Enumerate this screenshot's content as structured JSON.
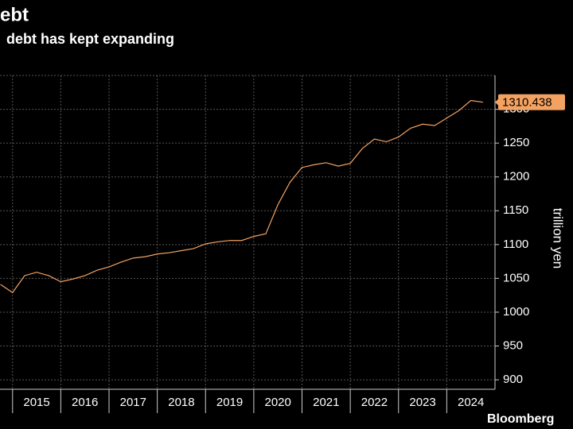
{
  "chart_data": {
    "type": "line",
    "title": "ebt",
    "subtitle": "debt has kept expanding",
    "y_label": "trillion yen",
    "source": "Bloomberg",
    "x": [
      2014.75,
      2015,
      2015.25,
      2015.5,
      2015.75,
      2016,
      2016.25,
      2016.5,
      2016.75,
      2017,
      2017.25,
      2017.5,
      2017.75,
      2018,
      2018.25,
      2018.5,
      2018.75,
      2019,
      2019.25,
      2019.5,
      2019.75,
      2020,
      2020.25,
      2020.5,
      2020.75,
      2021,
      2021.25,
      2021.5,
      2021.75,
      2022,
      2022.25,
      2022.5,
      2022.75,
      2023,
      2023.25,
      2023.5,
      2023.75,
      2024,
      2024.25,
      2024.5,
      2024.75
    ],
    "series": [
      {
        "color": "#f4a261",
        "values": [
          1041,
          1029,
          1054,
          1059,
          1054,
          1045,
          1049,
          1054,
          1062,
          1067,
          1074,
          1080,
          1082,
          1086,
          1088,
          1091,
          1094,
          1101,
          1104,
          1106,
          1106,
          1112,
          1116,
          1159,
          1192,
          1214,
          1218,
          1221,
          1216,
          1220,
          1242,
          1256,
          1252,
          1259,
          1272,
          1278,
          1276,
          1287,
          1298,
          1313,
          1310.438
        ]
      }
    ],
    "xlim": [
      2014.74,
      2025
    ],
    "xticks": [
      2015,
      2016,
      2017,
      2018,
      2019,
      2020,
      2021,
      2022,
      2023,
      2024
    ],
    "xtick_labels": [
      "2015",
      "2016",
      "2017",
      "2018",
      "2019",
      "2020",
      "2021",
      "2022",
      "2023",
      "2024"
    ],
    "ylim": [
      886,
      1350
    ],
    "yticks": [
      900,
      950,
      1000,
      1050,
      1100,
      1150,
      1200,
      1250,
      1300
    ],
    "grid": true
  }
}
